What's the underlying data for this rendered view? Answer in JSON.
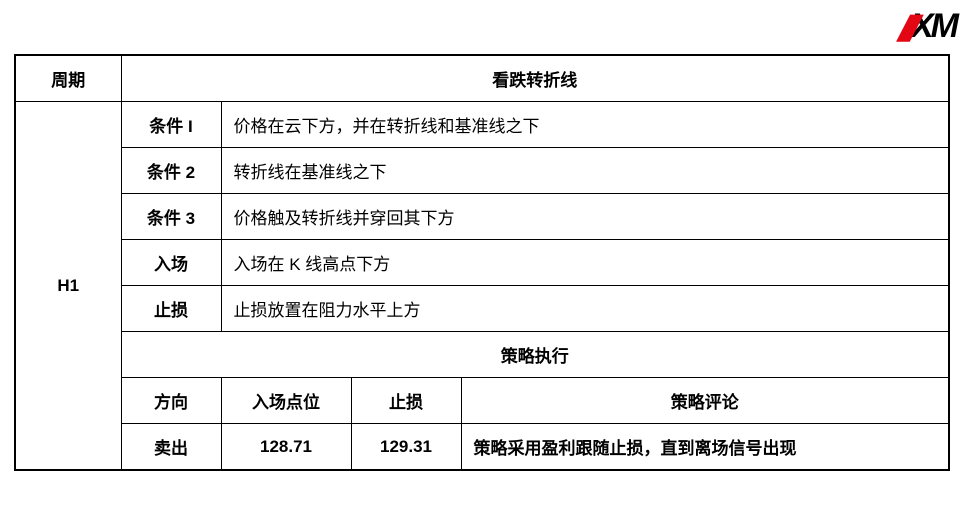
{
  "logo": {
    "text": "XM",
    "accent_color": "#e30613",
    "main_color": "#000000"
  },
  "table": {
    "border_color": "#000000",
    "background_color": "#ffffff",
    "header": {
      "period_label": "周期",
      "title": "看跌转折线"
    },
    "period_value": "H1",
    "rows": [
      {
        "label": "条件 I",
        "desc": "价格在云下方，并在转折线和基准线之下"
      },
      {
        "label": "条件 2",
        "desc": "转折线在基准线之下"
      },
      {
        "label": "条件 3",
        "desc": "价格触及转折线并穿回其下方"
      },
      {
        "label": "入场",
        "desc": "入场在 K 线高点下方"
      },
      {
        "label": "止损",
        "desc": "止损放置在阻力水平上方"
      }
    ],
    "execution": {
      "section_title": "策略执行",
      "headers": {
        "direction": "方向",
        "entry": "入场点位",
        "stop": "止损",
        "comment": "策略评论"
      },
      "values": {
        "direction": "卖出",
        "entry": "128.71",
        "stop": "129.31",
        "comment": "策略采用盈利跟随止损，直到离场信号出现"
      }
    }
  },
  "typography": {
    "title_fontsize": 26,
    "section_fontsize": 22,
    "label_fontsize": 17,
    "period_fontsize": 20
  }
}
